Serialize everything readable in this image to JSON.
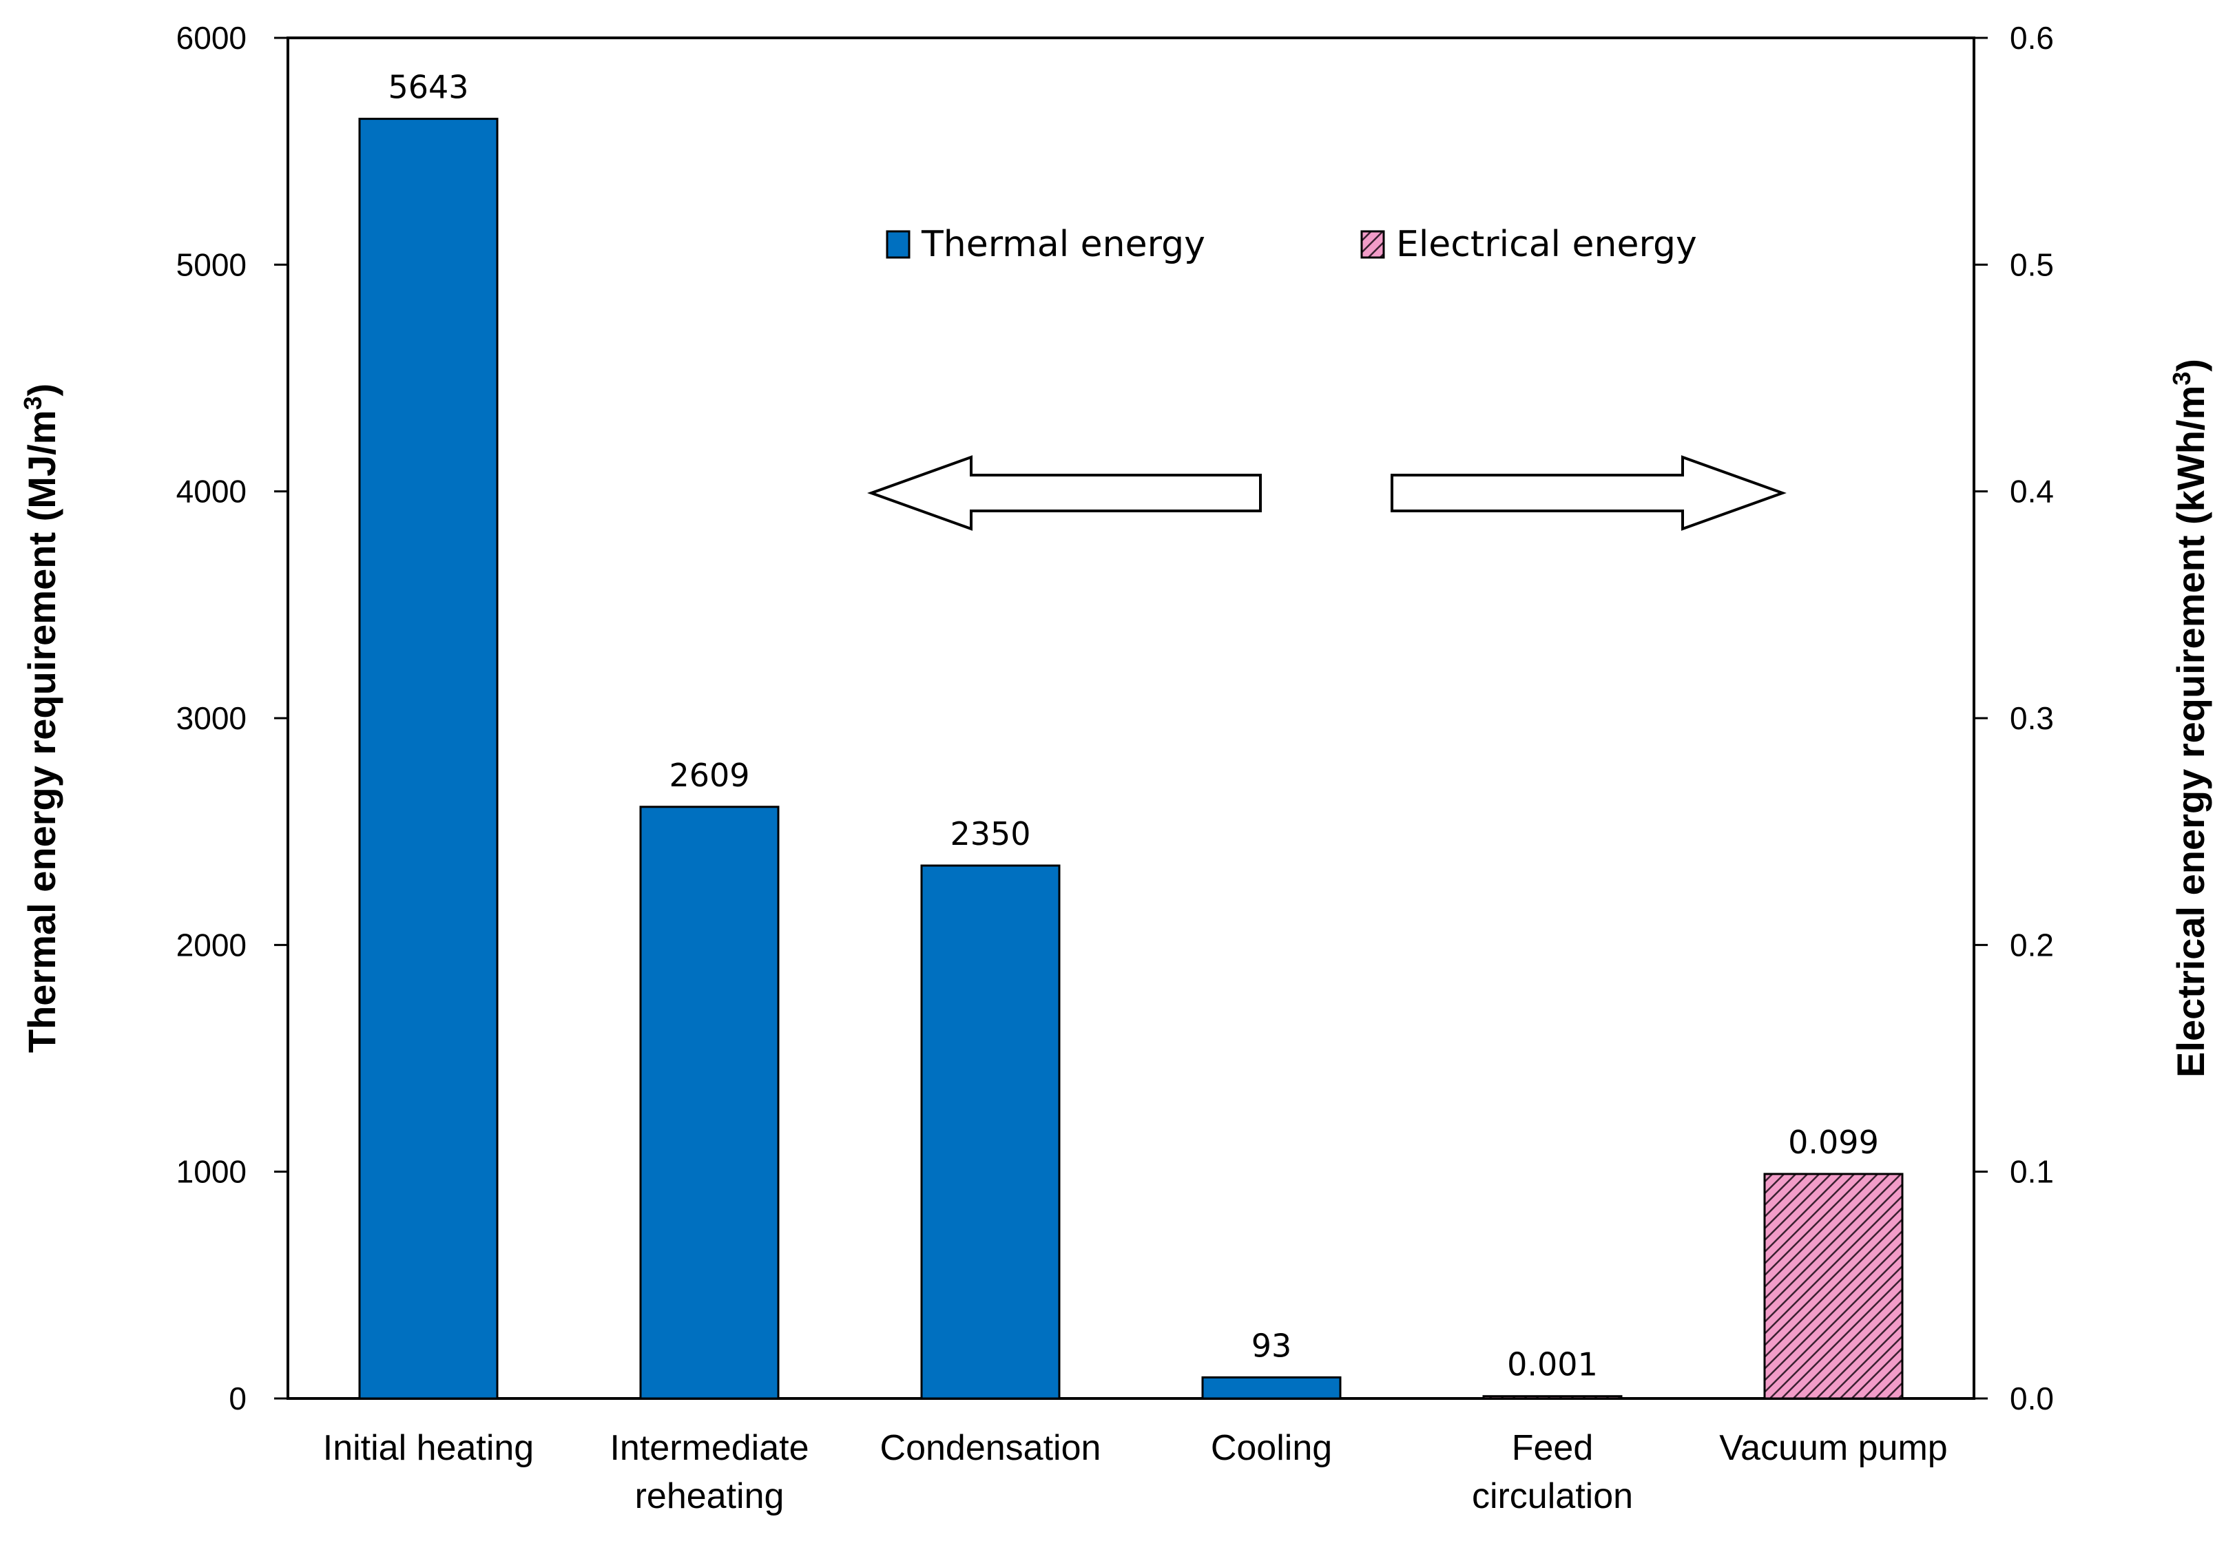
{
  "chart_data": {
    "type": "bar",
    "categories": [
      "Initial  heating",
      "Intermediate reheating",
      "Condensation",
      "Cooling",
      "Feed circulation",
      "Vacuum pump"
    ],
    "category_lines": [
      [
        "Initial  heating"
      ],
      [
        "Intermediate",
        "reheating"
      ],
      [
        "Condensation"
      ],
      [
        "Cooling"
      ],
      [
        "Feed",
        "circulation"
      ],
      [
        "Vacuum  pump"
      ]
    ],
    "series": [
      {
        "name": "Thermal energy",
        "axis": "left",
        "color": "#0070c0",
        "values": [
          5643,
          2609,
          2350,
          93,
          null,
          null
        ]
      },
      {
        "name": "Electrical energy",
        "axis": "right",
        "color": "#f29cc8",
        "pattern": "diagonal-hatch",
        "values": [
          null,
          null,
          null,
          null,
          0.001,
          0.099
        ]
      }
    ],
    "data_labels": [
      "5643",
      "2609",
      "2350",
      "93",
      "0.001",
      "0.099"
    ],
    "y_left": {
      "label": "Thermal energy requirement (MJ/m",
      "label_sup": "3",
      "label_end": ")",
      "ylim": [
        0,
        6000
      ],
      "ticks": [
        "0",
        "1000",
        "2000",
        "3000",
        "4000",
        "5000",
        "6000"
      ]
    },
    "y_right": {
      "label": "Electrical energy requirement (kWh/m",
      "label_sup": "3",
      "label_end": ")",
      "ylim": [
        0,
        0.6
      ],
      "ticks": [
        "0.0",
        "0.1",
        "0.2",
        "0.3",
        "0.4",
        "0.5",
        "0.6"
      ]
    },
    "legend": {
      "position": "top-center",
      "entries": [
        "Thermal energy",
        "Electrical energy"
      ]
    },
    "annotations": [
      {
        "type": "arrow",
        "direction": "left"
      },
      {
        "type": "arrow",
        "direction": "right"
      }
    ],
    "grid": false
  }
}
